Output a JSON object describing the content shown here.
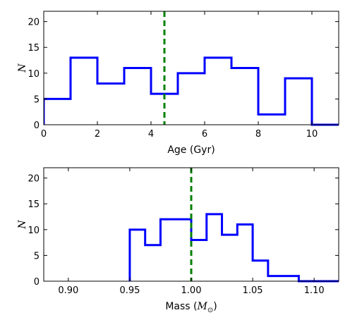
{
  "chart_data": [
    {
      "type": "histogram",
      "xlabel": "Age (Gyr)",
      "ylabel": "N",
      "xlim": [
        0,
        11
      ],
      "ylim": [
        0,
        22
      ],
      "xticks": [
        0,
        2,
        4,
        6,
        8,
        10
      ],
      "xtick_labels": [
        "0",
        "2",
        "4",
        "6",
        "8",
        "10"
      ],
      "yticks": [
        0,
        5,
        10,
        15,
        20
      ],
      "ytick_labels": [
        "0",
        "5",
        "10",
        "15",
        "20"
      ],
      "bin_edges": [
        0,
        1,
        2,
        3,
        4,
        5,
        6,
        7,
        8,
        9,
        10,
        11
      ],
      "counts": [
        5,
        13,
        8,
        11,
        6,
        10,
        13,
        11,
        2,
        9,
        0
      ],
      "vline": 4.5,
      "colors": {
        "hist": "#0000ff",
        "vline": "#008000"
      }
    },
    {
      "type": "histogram",
      "xlabel": "Mass (",
      "xlabel_math": "M",
      "xlabel_sub": "⊙",
      "xlabel_end": ")",
      "ylabel": "N",
      "xlim": [
        0.88,
        1.12
      ],
      "ylim": [
        0,
        22
      ],
      "xticks": [
        0.9,
        0.95,
        1.0,
        1.05,
        1.1
      ],
      "xtick_labels": [
        "0.90",
        "0.95",
        "1.00",
        "1.05",
        "1.10"
      ],
      "yticks": [
        0,
        5,
        10,
        15,
        20
      ],
      "ytick_labels": [
        "0",
        "5",
        "10",
        "15",
        "20"
      ],
      "bin_edges": [
        0.95,
        0.9625,
        0.975,
        0.9875,
        1.0,
        1.0125,
        1.025,
        1.0375,
        1.05,
        1.0625,
        1.075,
        1.0875,
        1.1,
        1.1125,
        1.125
      ],
      "counts": [
        10,
        7,
        12,
        12,
        8,
        13,
        9,
        11,
        4,
        1,
        1,
        0,
        0,
        0
      ],
      "vline": 1.0,
      "colors": {
        "hist": "#0000ff",
        "vline": "#008000"
      }
    }
  ]
}
